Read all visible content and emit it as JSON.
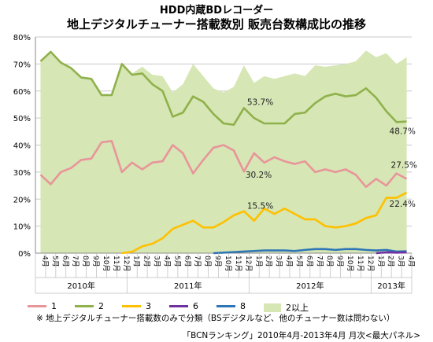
{
  "chart_data": {
    "type": "line",
    "title": "HDD内蔵BDレコーダー",
    "subtitle": "地上デジタルチューナー搭載数別 販売台数構成比の推移",
    "y_ticks": [
      "0%",
      "10%",
      "20%",
      "30%",
      "40%",
      "50%",
      "60%",
      "70%",
      "80%"
    ],
    "ylim": [
      0,
      80
    ],
    "categories": [
      "4月",
      "5月",
      "6月",
      "7月",
      "8月",
      "9月",
      "10月",
      "11月",
      "12月",
      "1月",
      "2月",
      "3月",
      "4月",
      "5月",
      "6月",
      "7月",
      "8月",
      "9月",
      "10月",
      "11月",
      "12月",
      "1月",
      "2月",
      "3月",
      "4月",
      "5月",
      "6月",
      "7月",
      "8月",
      "9月",
      "10月",
      "11月",
      "12月",
      "1月",
      "2月",
      "3月",
      "4月"
    ],
    "year_labels": [
      {
        "label": "2010年",
        "start": 0,
        "end": 8
      },
      {
        "label": "2011年",
        "start": 9,
        "end": 20
      },
      {
        "label": "2012年",
        "start": 21,
        "end": 32
      },
      {
        "label": "2013年",
        "start": 33,
        "end": 36
      }
    ],
    "series": [
      {
        "name": "1",
        "color": "#e8959a",
        "values": [
          29,
          25.5,
          30,
          31.5,
          34.5,
          35,
          41,
          41.5,
          30,
          33.5,
          31,
          33.5,
          34,
          40,
          37,
          29.5,
          34.5,
          39,
          40,
          38,
          30.2,
          37,
          33.5,
          35.5,
          34,
          33,
          34,
          30,
          31,
          30,
          31,
          29,
          24.5,
          27.5,
          25,
          29.5,
          27.5
        ]
      },
      {
        "name": "2",
        "color": "#8fb14b",
        "values": [
          71,
          74.5,
          70.5,
          68.5,
          65,
          64.5,
          58.5,
          58.5,
          70,
          66,
          66.5,
          62.5,
          60,
          50.5,
          52,
          58,
          56,
          51.5,
          48,
          47.5,
          53.7,
          50,
          48,
          48,
          48,
          51.5,
          52,
          55.5,
          58,
          59,
          58,
          58.5,
          61,
          57.5,
          52.5,
          48.5,
          48.7
        ]
      },
      {
        "name": "3",
        "color": "#ffc000",
        "values": [
          0,
          0,
          0,
          0,
          0,
          0,
          0,
          0,
          0,
          0.5,
          2.5,
          3.5,
          5.5,
          9,
          10.5,
          12,
          9.5,
          9.5,
          11.5,
          14,
          15.5,
          12,
          16.5,
          14.5,
          16.5,
          14.5,
          12.5,
          12.5,
          10,
          9.5,
          10,
          11,
          13,
          14,
          20.5,
          20.5,
          22.4
        ]
      },
      {
        "name": "6",
        "color": "#7030a0",
        "values": [
          0,
          0,
          0,
          0,
          0,
          0,
          0,
          0,
          0,
          0,
          0,
          0,
          0,
          0,
          0,
          0,
          0,
          0,
          0,
          0,
          0,
          0,
          0,
          0,
          0,
          0,
          0,
          0,
          0,
          0,
          0,
          0,
          0,
          0,
          0.3,
          0.2,
          0.3
        ]
      },
      {
        "name": "8",
        "color": "#2e75b6",
        "values": [
          0,
          0,
          0,
          0,
          0,
          0,
          0,
          0,
          0,
          0,
          0,
          0,
          0,
          0,
          0,
          0,
          0,
          0,
          0.2,
          0.4,
          0.6,
          0.8,
          1.0,
          1.0,
          1.0,
          0.8,
          1.2,
          1.5,
          1.5,
          1.2,
          1.5,
          1.5,
          1.2,
          1.0,
          1.2,
          0.6,
          0.7
        ]
      },
      {
        "name": "2以上",
        "color": "#d6e6b4",
        "type": "area",
        "values": [
          71,
          74.5,
          70.5,
          68.5,
          65,
          64.5,
          58.5,
          58.5,
          70,
          66.5,
          69,
          66,
          65.5,
          59.5,
          62.5,
          70,
          65.5,
          61,
          59.5,
          61.5,
          69.5,
          63,
          65.5,
          64.5,
          65.5,
          66.5,
          65.5,
          69.5,
          69,
          69.5,
          70,
          71,
          75,
          72.5,
          74,
          70,
          72.5
        ]
      }
    ],
    "annotations": [
      {
        "text": "53.7%",
        "series": 1,
        "index": 20,
        "dx": 4,
        "dy": -4
      },
      {
        "text": "30.2%",
        "series": 0,
        "index": 20,
        "dx": 2,
        "dy": 8
      },
      {
        "text": "15.5%",
        "series": 2,
        "index": 20,
        "dx": 4,
        "dy": -3
      },
      {
        "text": "48.7%",
        "series": 1,
        "index": 36,
        "dx": -22,
        "dy": 16
      },
      {
        "text": "27.5%",
        "series": 0,
        "index": 36,
        "dx": -20,
        "dy": -14
      },
      {
        "text": "22.4%",
        "series": 2,
        "index": 36,
        "dx": -22,
        "dy": 18
      }
    ],
    "grid": true,
    "legend_position": "bottom",
    "footnote": "※ 地上デジタルチューナー搭載数のみで分類（BSデジタルなど、他のチューナー数は問わない）",
    "source": "「BCNランキング」2010年4月-2013年4月 月次<最大パネル>"
  }
}
